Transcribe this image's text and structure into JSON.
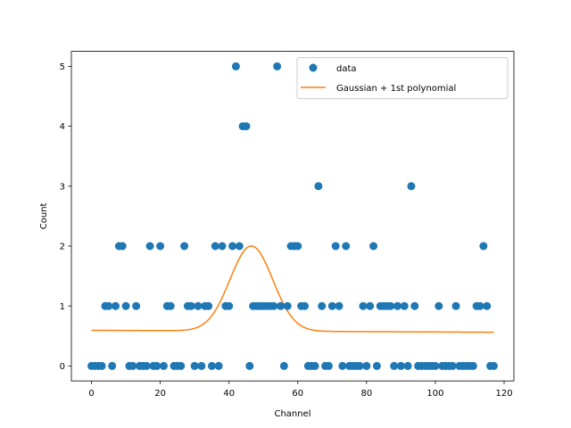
{
  "chart_data": {
    "type": "scatter",
    "xlabel": "Channel",
    "ylabel": "Count",
    "xlim": [
      -5.85,
      122.85
    ],
    "ylim": [
      -0.25,
      5.25
    ],
    "xticks": [
      0,
      20,
      40,
      60,
      80,
      100,
      120
    ],
    "yticks": [
      0,
      1,
      2,
      3,
      4,
      5
    ],
    "grid": false,
    "legend": {
      "placement": "top-right"
    },
    "series": [
      {
        "name": "data",
        "kind": "scatter",
        "color": "#1f77b4",
        "x": [
          0,
          1,
          2,
          3,
          4,
          5,
          6,
          7,
          8,
          9,
          10,
          11,
          12,
          13,
          14,
          15,
          16,
          17,
          18,
          19,
          20,
          21,
          22,
          23,
          24,
          25,
          26,
          27,
          28,
          29,
          30,
          31,
          32,
          33,
          34,
          35,
          36,
          37,
          38,
          39,
          40,
          41,
          42,
          43,
          44,
          45,
          46,
          47,
          48,
          49,
          50,
          51,
          52,
          53,
          54,
          55,
          56,
          57,
          58,
          59,
          60,
          61,
          62,
          63,
          64,
          65,
          66,
          67,
          68,
          69,
          70,
          71,
          72,
          73,
          74,
          75,
          76,
          77,
          78,
          79,
          80,
          81,
          82,
          83,
          84,
          85,
          86,
          87,
          88,
          89,
          90,
          91,
          92,
          93,
          94,
          95,
          96,
          97,
          98,
          99,
          100,
          101,
          102,
          103,
          104,
          105,
          106,
          107,
          108,
          109,
          110,
          111,
          112,
          113,
          114,
          115,
          116,
          117
        ],
        "y": [
          0,
          0,
          0,
          0,
          1,
          1,
          0,
          1,
          2,
          2,
          1,
          0,
          0,
          1,
          0,
          0,
          0,
          2,
          0,
          0,
          2,
          0,
          1,
          1,
          0,
          0,
          0,
          2,
          1,
          1,
          0,
          1,
          0,
          1,
          1,
          0,
          2,
          0,
          2,
          1,
          1,
          2,
          5,
          2,
          4,
          4,
          0,
          1,
          1,
          1,
          1,
          1,
          1,
          1,
          5,
          1,
          0,
          1,
          2,
          2,
          2,
          1,
          1,
          0,
          0,
          0,
          3,
          1,
          0,
          0,
          1,
          2,
          1,
          0,
          2,
          0,
          0,
          0,
          0,
          1,
          0,
          1,
          2,
          0,
          1,
          1,
          1,
          1,
          0,
          1,
          0,
          1,
          0,
          3,
          1,
          0,
          0,
          0,
          0,
          0,
          0,
          1,
          0,
          0,
          0,
          0,
          1,
          0,
          0,
          0,
          0,
          0,
          1,
          1,
          2,
          1,
          0,
          0
        ]
      },
      {
        "name": "Gaussian + 1st polynomial",
        "kind": "line",
        "color": "#ff7f0e",
        "model": {
          "amplitude": 1.42,
          "center": 46.5,
          "sigma": 6.2,
          "intercept": 0.595,
          "slope": -0.00028
        },
        "x_range": [
          0,
          117
        ]
      }
    ]
  }
}
